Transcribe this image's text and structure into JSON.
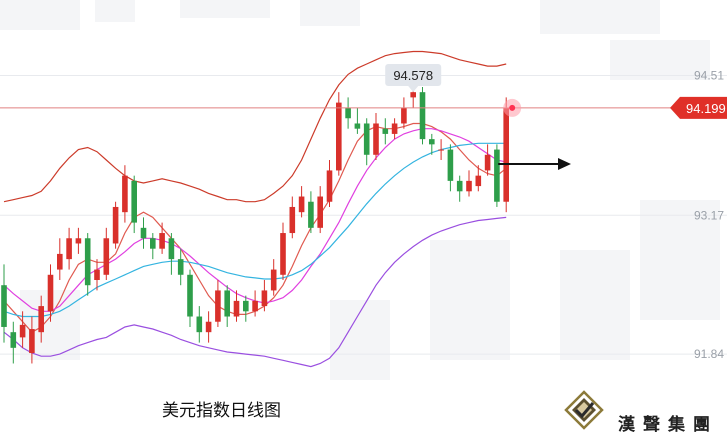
{
  "caption": "美元指数日线图",
  "logo": {
    "text": "漢聲集團"
  },
  "colors": {
    "up": "#d9302b",
    "down": "#2e9e4a",
    "upper_band": "#cc3b2a",
    "lower_band": "#9a4fe0",
    "ma_fast": "#e05a50",
    "ma_mid": "#e040e0",
    "ma_slow": "#34b4e0",
    "current_line": "#e08080",
    "current_tag": "#e03028",
    "peak_tag": "#e2e6ec"
  },
  "chart_data": {
    "type": "candlestick",
    "title": "美元指数日线图",
    "ylim": [
      91.4,
      94.85
    ],
    "yticks": [
      "94.51",
      "93.17",
      "91.84"
    ],
    "current_price": "94.199",
    "peak_label": "94.578",
    "grid": true,
    "candles": [
      [
        92.5,
        92.1,
        92.7,
        91.95
      ],
      [
        92.05,
        91.9,
        92.15,
        91.75
      ],
      [
        92.0,
        92.12,
        92.25,
        91.9
      ],
      [
        91.85,
        92.08,
        92.2,
        91.75
      ],
      [
        92.05,
        92.3,
        92.4,
        91.95
      ],
      [
        92.25,
        92.6,
        92.7,
        92.15
      ],
      [
        92.65,
        92.8,
        92.95,
        92.55
      ],
      [
        92.75,
        92.95,
        93.05,
        92.65
      ],
      [
        92.9,
        92.95,
        93.05,
        92.8
      ],
      [
        92.95,
        92.5,
        93.0,
        92.4
      ],
      [
        92.55,
        92.65,
        92.75,
        92.45
      ],
      [
        92.6,
        92.95,
        93.05,
        92.55
      ],
      [
        92.9,
        93.25,
        93.3,
        92.85
      ],
      [
        93.2,
        93.55,
        93.65,
        93.1
      ],
      [
        93.5,
        93.1,
        93.55,
        93.0
      ],
      [
        93.05,
        92.95,
        93.15,
        92.85
      ],
      [
        92.95,
        92.85,
        93.0,
        92.75
      ],
      [
        92.85,
        93.0,
        93.1,
        92.8
      ],
      [
        92.95,
        92.75,
        93.0,
        92.6
      ],
      [
        92.75,
        92.6,
        92.85,
        92.5
      ],
      [
        92.6,
        92.2,
        92.65,
        92.1
      ],
      [
        92.2,
        92.05,
        92.3,
        91.95
      ],
      [
        92.05,
        92.15,
        92.25,
        91.95
      ],
      [
        92.15,
        92.45,
        92.55,
        92.1
      ],
      [
        92.45,
        92.2,
        92.5,
        92.1
      ],
      [
        92.2,
        92.35,
        92.45,
        92.15
      ],
      [
        92.35,
        92.25,
        92.4,
        92.15
      ],
      [
        92.25,
        92.35,
        92.45,
        92.2
      ],
      [
        92.3,
        92.45,
        92.55,
        92.25
      ],
      [
        92.45,
        92.65,
        92.75,
        92.4
      ],
      [
        92.6,
        93.0,
        93.1,
        92.55
      ],
      [
        93.0,
        93.25,
        93.35,
        92.95
      ],
      [
        93.2,
        93.35,
        93.45,
        93.15
      ],
      [
        93.3,
        93.05,
        93.4,
        93.0
      ],
      [
        93.05,
        93.35,
        93.45,
        93.0
      ],
      [
        93.3,
        93.6,
        93.7,
        93.25
      ],
      [
        93.6,
        94.25,
        94.35,
        93.55
      ],
      [
        94.2,
        94.1,
        94.3,
        94.0
      ],
      [
        94.05,
        94.0,
        94.2,
        93.95
      ],
      [
        94.05,
        93.75,
        94.1,
        93.65
      ],
      [
        93.75,
        94.05,
        94.15,
        93.7
      ],
      [
        94.0,
        93.95,
        94.1,
        93.85
      ],
      [
        93.95,
        94.05,
        94.1,
        93.9
      ],
      [
        94.05,
        94.2,
        94.3,
        94.0
      ],
      [
        94.3,
        94.35,
        94.578,
        94.2
      ],
      [
        94.35,
        93.9,
        94.4,
        93.85
      ],
      [
        93.9,
        93.85,
        93.95,
        93.75
      ],
      [
        93.8,
        93.8,
        93.9,
        93.7
      ],
      [
        93.8,
        93.5,
        93.85,
        93.4
      ],
      [
        93.5,
        93.4,
        93.55,
        93.3
      ],
      [
        93.4,
        93.5,
        93.6,
        93.35
      ],
      [
        93.45,
        93.55,
        93.65,
        93.4
      ],
      [
        93.6,
        93.75,
        93.85,
        93.55
      ],
      [
        93.8,
        93.3,
        93.85,
        93.25
      ],
      [
        93.3,
        94.2,
        94.3,
        93.2
      ]
    ],
    "series": [
      {
        "name": "",
        "key": "upper_band",
        "values": [
          93.3,
          93.32,
          93.34,
          93.36,
          93.4,
          93.5,
          93.62,
          93.72,
          93.8,
          93.82,
          93.78,
          93.7,
          93.62,
          93.55,
          93.5,
          93.48,
          93.5,
          93.52,
          93.5,
          93.48,
          93.45,
          93.42,
          93.38,
          93.35,
          93.32,
          93.32,
          93.3,
          93.3,
          93.32,
          93.38,
          93.45,
          93.55,
          93.7,
          93.9,
          94.1,
          94.28,
          94.42,
          94.52,
          94.58,
          94.62,
          94.66,
          94.7,
          94.72,
          94.73,
          94.74,
          94.74,
          94.73,
          94.72,
          94.69,
          94.66,
          94.64,
          94.62,
          94.6,
          94.6,
          94.62
        ]
      },
      {
        "name": "",
        "key": "lower_band",
        "values": [
          92.05,
          91.98,
          91.9,
          91.85,
          91.82,
          91.82,
          91.84,
          91.88,
          91.92,
          91.95,
          91.98,
          92.0,
          92.05,
          92.1,
          92.12,
          92.1,
          92.08,
          92.05,
          92.02,
          91.98,
          91.95,
          91.92,
          91.9,
          91.88,
          91.86,
          91.85,
          91.84,
          91.83,
          91.82,
          91.8,
          91.78,
          91.76,
          91.74,
          91.72,
          91.75,
          91.8,
          91.9,
          92.05,
          92.2,
          92.35,
          92.5,
          92.62,
          92.72,
          92.8,
          92.87,
          92.93,
          92.98,
          93.02,
          93.05,
          93.08,
          93.1,
          93.12,
          93.13,
          93.14,
          93.15
        ]
      },
      {
        "name": "",
        "key": "ma_fast",
        "values": [
          92.35,
          92.25,
          92.15,
          92.05,
          92.1,
          92.2,
          92.35,
          92.55,
          92.7,
          92.75,
          92.72,
          92.72,
          92.8,
          93.0,
          93.15,
          93.2,
          93.15,
          93.05,
          92.95,
          92.85,
          92.7,
          92.55,
          92.4,
          92.3,
          92.25,
          92.22,
          92.22,
          92.25,
          92.3,
          92.38,
          92.5,
          92.68,
          92.88,
          93.05,
          93.18,
          93.32,
          93.5,
          93.7,
          93.88,
          93.98,
          94.02,
          94.0,
          94.0,
          94.02,
          94.05,
          94.05,
          94.02,
          93.97,
          93.9,
          93.8,
          93.7,
          93.62,
          93.57,
          93.55,
          93.62
        ]
      },
      {
        "name": "",
        "key": "ma_mid",
        "values": [
          92.5,
          92.42,
          92.35,
          92.28,
          92.25,
          92.25,
          92.3,
          92.4,
          92.5,
          92.6,
          92.65,
          92.7,
          92.75,
          92.82,
          92.9,
          92.95,
          92.95,
          92.93,
          92.9,
          92.85,
          92.78,
          92.7,
          92.62,
          92.55,
          92.48,
          92.42,
          92.38,
          92.35,
          92.33,
          92.35,
          92.38,
          92.45,
          92.55,
          92.68,
          92.8,
          92.95,
          93.1,
          93.28,
          93.45,
          93.6,
          93.72,
          93.82,
          93.9,
          93.95,
          93.98,
          94.0,
          94.0,
          93.98,
          93.95,
          93.92,
          93.88,
          93.82,
          93.76,
          93.7,
          93.68
        ]
      },
      {
        "name": "",
        "key": "ma_slow",
        "values": [
          92.25,
          92.22,
          92.2,
          92.2,
          92.2,
          92.22,
          92.25,
          92.3,
          92.36,
          92.42,
          92.48,
          92.52,
          92.56,
          92.6,
          92.64,
          92.68,
          92.7,
          92.72,
          92.73,
          92.73,
          92.72,
          92.7,
          92.68,
          92.65,
          92.62,
          92.6,
          92.58,
          92.57,
          92.56,
          92.56,
          92.57,
          92.6,
          92.64,
          92.7,
          92.78,
          92.86,
          92.96,
          93.06,
          93.17,
          93.28,
          93.38,
          93.47,
          93.55,
          93.62,
          93.68,
          93.73,
          93.77,
          93.8,
          93.82,
          93.84,
          93.85,
          93.86,
          93.86,
          93.86,
          93.86
        ]
      }
    ]
  }
}
